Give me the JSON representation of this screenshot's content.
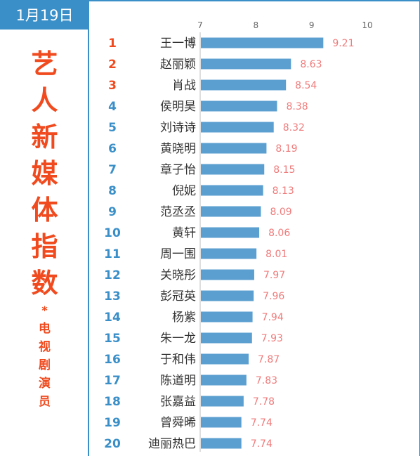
{
  "header": {
    "date": "1月19日",
    "title_chars": [
      "艺",
      "人",
      "新",
      "媒",
      "体",
      "指",
      "数"
    ],
    "separator": "*",
    "subtitle_chars": [
      "电",
      "视",
      "剧",
      "演",
      "员"
    ]
  },
  "colors": {
    "accent": "#3a8fc8",
    "bar": "#5b9fd0",
    "title": "#f04a1e",
    "value_label": "#f07b7b",
    "rank_top3": "#f04a1e",
    "rank_other": "#3a8fc8"
  },
  "chart_data": {
    "type": "bar",
    "orientation": "horizontal",
    "title": "",
    "xlabel": "",
    "ylabel": "",
    "xlim": [
      7,
      10
    ],
    "ticks": [
      "7",
      "8",
      "9",
      "10"
    ],
    "grid": false,
    "ranks": [
      "1",
      "2",
      "3",
      "4",
      "5",
      "6",
      "7",
      "8",
      "9",
      "10",
      "11",
      "12",
      "13",
      "14",
      "15",
      "16",
      "17",
      "18",
      "19",
      "20"
    ],
    "categories": [
      "王一博",
      "赵丽颖",
      "肖战",
      "侯明昊",
      "刘诗诗",
      "黄晓明",
      "章子怡",
      "倪妮",
      "范丞丞",
      "黄轩",
      "周一围",
      "关晓彤",
      "彭冠英",
      "杨紫",
      "朱一龙",
      "于和伟",
      "陈道明",
      "张嘉益",
      "曾舜晞",
      "迪丽热巴"
    ],
    "values": [
      9.21,
      8.63,
      8.54,
      8.38,
      8.32,
      8.19,
      8.15,
      8.13,
      8.09,
      8.06,
      8.01,
      7.97,
      7.96,
      7.94,
      7.93,
      7.87,
      7.83,
      7.78,
      7.74,
      7.74
    ],
    "value_labels": [
      "9.21",
      "8.63",
      "8.54",
      "8.38",
      "8.32",
      "8.19",
      "8.15",
      "8.13",
      "8.09",
      "8.06",
      "8.01",
      "7.97",
      "7.96",
      "7.94",
      "7.93",
      "7.87",
      "7.83",
      "7.78",
      "7.74",
      "7.74"
    ]
  }
}
